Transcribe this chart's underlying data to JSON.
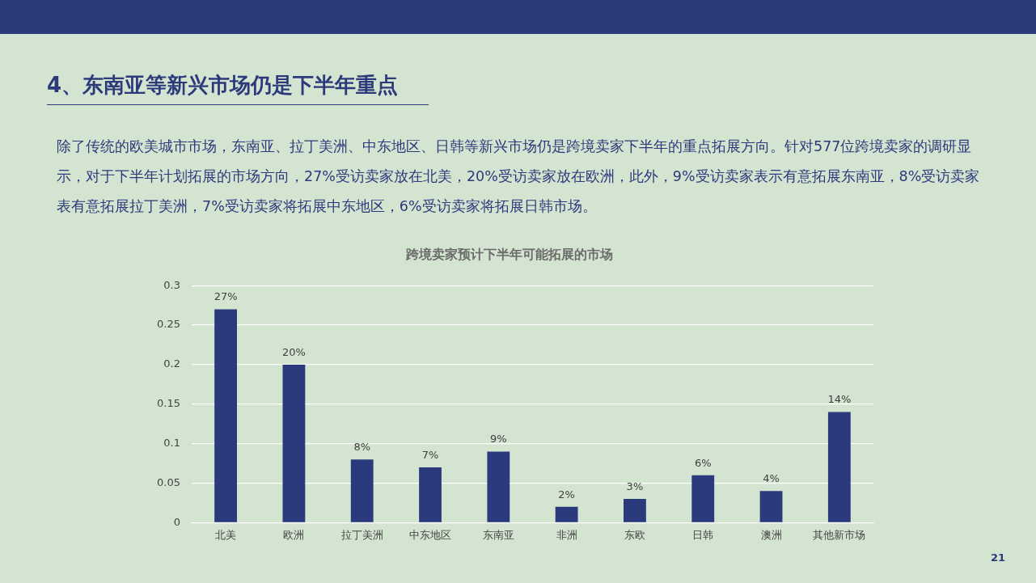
{
  "chart_data": {
    "type": "bar",
    "title": "跨境卖家预计下半年可能拓展的市场",
    "categories": [
      "北美",
      "欧洲",
      "拉丁美洲",
      "中东地区",
      "东南亚",
      "非洲",
      "东欧",
      "日韩",
      "澳洲",
      "其他新市场"
    ],
    "values": [
      0.27,
      0.2,
      0.08,
      0.07,
      0.09,
      0.02,
      0.03,
      0.06,
      0.04,
      0.14
    ],
    "value_labels": [
      "27%",
      "20%",
      "8%",
      "7%",
      "9%",
      "2%",
      "3%",
      "6%",
      "4%",
      "14%"
    ],
    "color": "#2b3a7c",
    "ylim": [
      0,
      0.3
    ],
    "yticks": [
      0,
      0.05,
      0.1,
      0.15,
      0.2,
      0.25,
      0.3
    ],
    "grid": "y",
    "legend": false,
    "annotations": [
      "4、东南亚等新兴市场仍是下半年重点",
      "除了传统的欧美城市市场，东南亚、拉丁美洲、中东地区、日韩等新兴市场仍是跨境卖家下半年的重点拓展方向。针对577位跨境卖家的调研显示，对于下半年计划拓展的市场方向，27%受访卖家放在北美，20%受访卖家放在欧洲，此外，9%受访卖家表示有意拓展东南亚，8%受访卖家表有意拓展拉丁美洲，7%受访卖家将拓展中东地区，6%受访卖家将拓展日韩市场。",
      "21"
    ]
  }
}
